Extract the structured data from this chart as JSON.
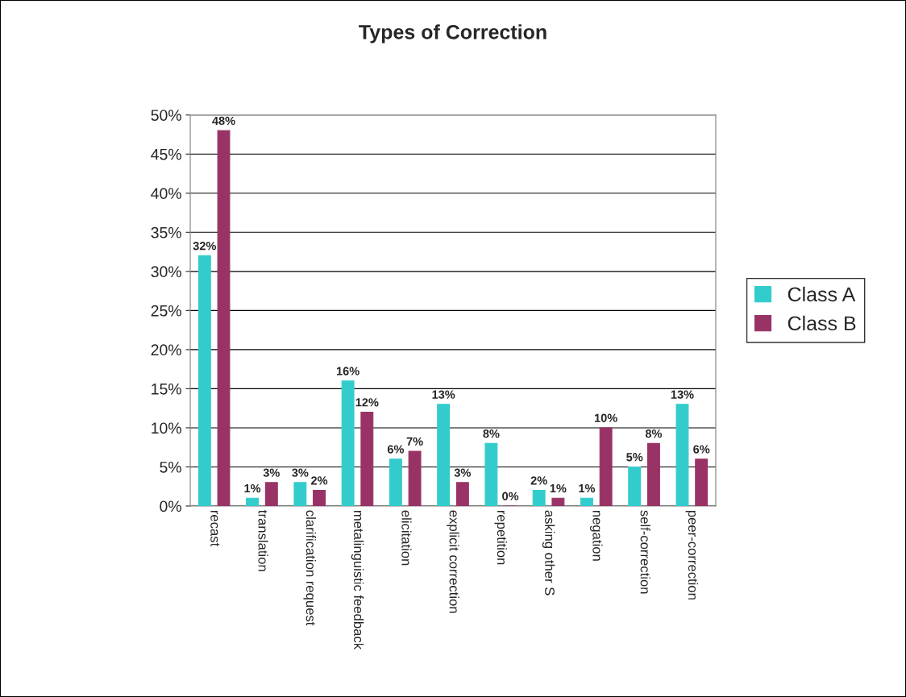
{
  "chart_data": {
    "type": "bar",
    "title": "Types of Correction",
    "categories": [
      "recast",
      "translation",
      "clarification request",
      "metalinguistic feedback",
      "elicitation",
      "explicit correction",
      "repetition",
      "asking other S",
      "negation",
      "self-correction",
      "peer-correction"
    ],
    "series": [
      {
        "name": "Class A",
        "color": "#33cccc",
        "values": [
          32,
          1,
          3,
          16,
          6,
          13,
          8,
          2,
          1,
          5,
          13
        ],
        "value_labels": [
          "32%",
          "1%",
          "3%",
          "16%",
          "6%",
          "13%",
          "8%",
          "2%",
          "1%",
          "5%",
          "13%"
        ]
      },
      {
        "name": "Class B",
        "color": "#993366",
        "values": [
          48,
          3,
          2,
          12,
          7,
          3,
          0,
          1,
          10,
          8,
          6
        ],
        "value_labels": [
          "48%",
          "3%",
          "2%",
          "12%",
          "7%",
          "3%",
          "0%",
          "1%",
          "10%",
          "8%",
          "6%"
        ]
      }
    ],
    "ylim": [
      0,
      50
    ],
    "yticks": [
      {
        "value": 0,
        "label": "0%"
      },
      {
        "value": 5,
        "label": "5%"
      },
      {
        "value": 10,
        "label": "10%"
      },
      {
        "value": 15,
        "label": "15%"
      },
      {
        "value": 20,
        "label": "20%"
      },
      {
        "value": 25,
        "label": "25%"
      },
      {
        "value": 30,
        "label": "30%"
      },
      {
        "value": 35,
        "label": "35%"
      },
      {
        "value": 40,
        "label": "40%"
      },
      {
        "value": 45,
        "label": "45%"
      },
      {
        "value": 50,
        "label": "50%"
      }
    ],
    "grid": "y",
    "legend": "right"
  }
}
